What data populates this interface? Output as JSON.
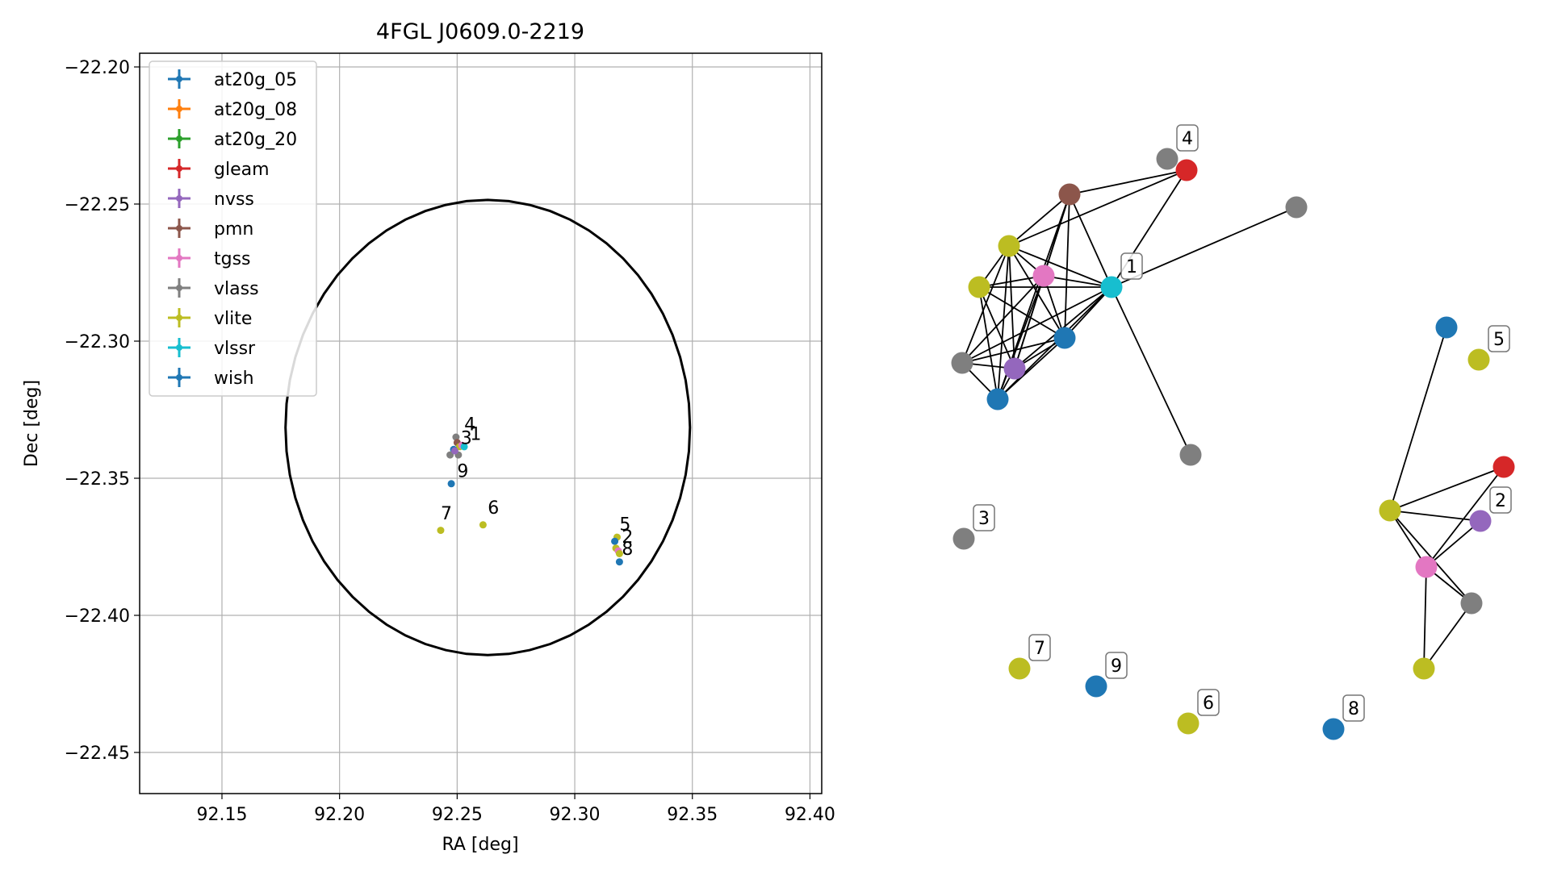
{
  "chart_data": [
    {
      "type": "scatter",
      "title": "4FGL J0609.0-2219",
      "xlabel": "RA [deg]",
      "ylabel": "Dec [deg]",
      "xlim": [
        92.115,
        92.405
      ],
      "ylim": [
        -22.465,
        -22.195
      ],
      "x_ticks": [
        92.15,
        92.2,
        92.25,
        92.3,
        92.35,
        92.4
      ],
      "x_tick_labels": [
        "92.15",
        "92.20",
        "92.25",
        "92.30",
        "92.35",
        "92.40"
      ],
      "y_ticks": [
        -22.2,
        -22.25,
        -22.3,
        -22.35,
        -22.4,
        -22.45
      ],
      "y_tick_labels": [
        "−22.20",
        "−22.25",
        "−22.30",
        "−22.35",
        "−22.40",
        "−22.45"
      ],
      "grid": true,
      "legend_position": "top-left",
      "legend": [
        {
          "name": "at20g_05",
          "color": "#1f77b4"
        },
        {
          "name": "at20g_08",
          "color": "#ff7f0e"
        },
        {
          "name": "at20g_20",
          "color": "#2ca02c"
        },
        {
          "name": "gleam",
          "color": "#d62728"
        },
        {
          "name": "nvss",
          "color": "#9467bd"
        },
        {
          "name": "pmn",
          "color": "#8c564b"
        },
        {
          "name": "tgss",
          "color": "#e377c2"
        },
        {
          "name": "vlass",
          "color": "#7f7f7f"
        },
        {
          "name": "vlite",
          "color": "#bcbd22"
        },
        {
          "name": "vlssr",
          "color": "#17becf"
        },
        {
          "name": "wish",
          "color": "#1f77b4"
        }
      ],
      "ellipse": {
        "center": [
          92.263,
          -22.3315
        ],
        "semi_axis_ra": 0.086,
        "semi_axis_dec": 0.083
      },
      "points": [
        {
          "ra": 92.2495,
          "dec": -22.335,
          "color": "#7f7f7f"
        },
        {
          "ra": 92.25,
          "dec": -22.337,
          "color": "#8c564b"
        },
        {
          "ra": 92.251,
          "dec": -22.3385,
          "color": "#bcbd22"
        },
        {
          "ra": 92.252,
          "dec": -22.338,
          "color": "#e377c2"
        },
        {
          "ra": 92.253,
          "dec": -22.3385,
          "color": "#17becf"
        },
        {
          "ra": 92.2485,
          "dec": -22.3395,
          "color": "#1f77b4"
        },
        {
          "ra": 92.247,
          "dec": -22.3415,
          "color": "#7f7f7f"
        },
        {
          "ra": 92.2505,
          "dec": -22.3415,
          "color": "#7f7f7f"
        },
        {
          "ra": 92.249,
          "dec": -22.34,
          "color": "#9467bd"
        },
        {
          "ra": 92.2475,
          "dec": -22.352,
          "color": "#1f77b4"
        },
        {
          "ra": 92.243,
          "dec": -22.369,
          "color": "#bcbd22"
        },
        {
          "ra": 92.261,
          "dec": -22.367,
          "color": "#bcbd22"
        },
        {
          "ra": 92.318,
          "dec": -22.3715,
          "color": "#bcbd22"
        },
        {
          "ra": 92.317,
          "dec": -22.373,
          "color": "#1f77b4"
        },
        {
          "ra": 92.3175,
          "dec": -22.3755,
          "color": "#bcbd22"
        },
        {
          "ra": 92.3185,
          "dec": -22.3765,
          "color": "#e377c2"
        },
        {
          "ra": 92.319,
          "dec": -22.3775,
          "color": "#bcbd22"
        },
        {
          "ra": 92.319,
          "dec": -22.3805,
          "color": "#1f77b4"
        }
      ],
      "annotations": [
        {
          "text": "4",
          "ra": 92.253,
          "dec": -22.3325
        },
        {
          "text": "1",
          "ra": 92.2555,
          "dec": -22.336
        },
        {
          "text": "3",
          "ra": 92.2515,
          "dec": -22.3375
        },
        {
          "text": "9",
          "ra": 92.25,
          "dec": -22.3495
        },
        {
          "text": "7",
          "ra": 92.243,
          "dec": -22.365
        },
        {
          "text": "6",
          "ra": 92.263,
          "dec": -22.363
        },
        {
          "text": "5",
          "ra": 92.319,
          "dec": -22.369
        },
        {
          "text": "2",
          "ra": 92.32,
          "dec": -22.3735
        },
        {
          "text": "8",
          "ra": 92.32,
          "dec": -22.378
        }
      ]
    },
    {
      "type": "network",
      "labels": [
        "1",
        "2",
        "3",
        "4",
        "5",
        "6",
        "7",
        "8",
        "9"
      ],
      "nodes": [
        {
          "id": "n_pmn",
          "color": "#8c564b"
        },
        {
          "id": "n_gleam_a",
          "color": "#d62728"
        },
        {
          "id": "n_vlass_a",
          "color": "#7f7f7f"
        },
        {
          "id": "n_vlass_b",
          "color": "#7f7f7f"
        },
        {
          "id": "n_vlite_a",
          "color": "#bcbd22"
        },
        {
          "id": "n_vlite_b",
          "color": "#bcbd22"
        },
        {
          "id": "n_tgss_a",
          "color": "#e377c2"
        },
        {
          "id": "n_vlssr",
          "color": "#17becf",
          "label": "1"
        },
        {
          "id": "n_at20_a",
          "color": "#1f77b4"
        },
        {
          "id": "n_vlass_c",
          "color": "#7f7f7f"
        },
        {
          "id": "n_nvss_a",
          "color": "#9467bd"
        },
        {
          "id": "n_wish_a",
          "color": "#1f77b4"
        },
        {
          "id": "n_vlass_d",
          "color": "#7f7f7f"
        },
        {
          "id": "n_vlass_lbl4",
          "color": "#7f7f7f",
          "label": "4"
        },
        {
          "id": "n_vlass_lbl3",
          "color": "#7f7f7f",
          "label": "3"
        },
        {
          "id": "n_at20_b",
          "color": "#1f77b4"
        },
        {
          "id": "n_vlite_lbl5",
          "color": "#bcbd22",
          "label": "5"
        },
        {
          "id": "n_gleam_b",
          "color": "#d62728"
        },
        {
          "id": "n_vlite_c",
          "color": "#bcbd22"
        },
        {
          "id": "n_nvss_lbl2",
          "color": "#9467bd",
          "label": "2"
        },
        {
          "id": "n_tgss_b",
          "color": "#e377c2"
        },
        {
          "id": "n_vlass_e",
          "color": "#7f7f7f"
        },
        {
          "id": "n_vlite_d",
          "color": "#bcbd22"
        },
        {
          "id": "n_vlite_lbl7",
          "color": "#bcbd22",
          "label": "7"
        },
        {
          "id": "n_wish_lbl9",
          "color": "#1f77b4",
          "label": "9"
        },
        {
          "id": "n_vlite_lbl6",
          "color": "#bcbd22",
          "label": "6"
        },
        {
          "id": "n_wish_lbl8",
          "color": "#1f77b4",
          "label": "8"
        }
      ],
      "edges": [
        [
          "n_pmn",
          "n_gleam_a"
        ],
        [
          "n_pmn",
          "n_vlite_a"
        ],
        [
          "n_pmn",
          "n_tgss_a"
        ],
        [
          "n_pmn",
          "n_vlssr"
        ],
        [
          "n_pmn",
          "n_at20_a"
        ],
        [
          "n_pmn",
          "n_nvss_a"
        ],
        [
          "n_pmn",
          "n_wish_a"
        ],
        [
          "n_gleam_a",
          "n_vlite_a"
        ],
        [
          "n_gleam_a",
          "n_vlssr"
        ],
        [
          "n_vlass_a",
          "n_vlssr"
        ],
        [
          "n_vlass_b",
          "n_vlssr"
        ],
        [
          "n_vlite_a",
          "n_vlite_b"
        ],
        [
          "n_vlite_a",
          "n_tgss_a"
        ],
        [
          "n_vlite_a",
          "n_vlssr"
        ],
        [
          "n_vlite_a",
          "n_at20_a"
        ],
        [
          "n_vlite_a",
          "n_vlass_c"
        ],
        [
          "n_vlite_a",
          "n_nvss_a"
        ],
        [
          "n_vlite_a",
          "n_wish_a"
        ],
        [
          "n_vlite_b",
          "n_tgss_a"
        ],
        [
          "n_vlite_b",
          "n_vlssr"
        ],
        [
          "n_vlite_b",
          "n_at20_a"
        ],
        [
          "n_vlite_b",
          "n_nvss_a"
        ],
        [
          "n_vlite_b",
          "n_wish_a"
        ],
        [
          "n_tgss_a",
          "n_vlssr"
        ],
        [
          "n_tgss_a",
          "n_at20_a"
        ],
        [
          "n_tgss_a",
          "n_vlass_c"
        ],
        [
          "n_tgss_a",
          "n_nvss_a"
        ],
        [
          "n_tgss_a",
          "n_wish_a"
        ],
        [
          "n_vlssr",
          "n_at20_a"
        ],
        [
          "n_vlssr",
          "n_vlass_c"
        ],
        [
          "n_vlssr",
          "n_nvss_a"
        ],
        [
          "n_vlssr",
          "n_wish_a"
        ],
        [
          "n_at20_a",
          "n_vlass_c"
        ],
        [
          "n_at20_a",
          "n_nvss_a"
        ],
        [
          "n_at20_a",
          "n_wish_a"
        ],
        [
          "n_vlass_c",
          "n_nvss_a"
        ],
        [
          "n_vlass_c",
          "n_wish_a"
        ],
        [
          "n_nvss_a",
          "n_wish_a"
        ],
        [
          "n_at20_b",
          "n_vlite_c"
        ],
        [
          "n_gleam_b",
          "n_vlite_c"
        ],
        [
          "n_gleam_b",
          "n_tgss_b"
        ],
        [
          "n_vlite_c",
          "n_nvss_lbl2"
        ],
        [
          "n_vlite_c",
          "n_tgss_b"
        ],
        [
          "n_vlite_c",
          "n_vlass_e"
        ],
        [
          "n_nvss_lbl2",
          "n_tgss_b"
        ],
        [
          "n_tgss_b",
          "n_vlass_e"
        ],
        [
          "n_tgss_b",
          "n_vlite_d"
        ],
        [
          "n_vlass_e",
          "n_vlite_d"
        ]
      ]
    }
  ]
}
